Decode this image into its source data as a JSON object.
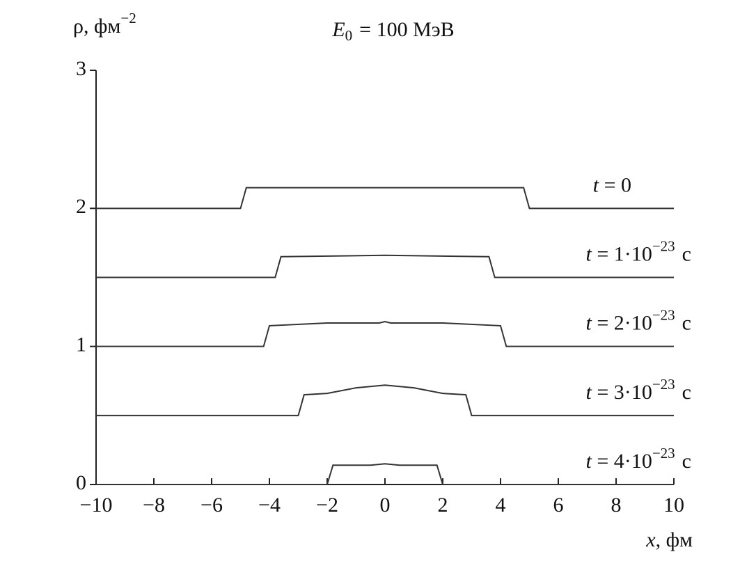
{
  "chart_data": {
    "type": "line",
    "title": "E0 = 100 МэВ",
    "y_label": "ρ, фм−2",
    "x_label": "x, фм",
    "xlim": [
      -10,
      10
    ],
    "ylim": [
      0,
      3
    ],
    "xticks": [
      {
        "value": -10,
        "label": "−10"
      },
      {
        "value": -8,
        "label": "−8"
      },
      {
        "value": -6,
        "label": "−6"
      },
      {
        "value": -4,
        "label": "−4"
      },
      {
        "value": -2,
        "label": "−2"
      },
      0,
      2,
      4,
      6,
      8,
      10
    ],
    "yticks": [
      0,
      1,
      2,
      3
    ],
    "series": [
      {
        "name": "t = 0",
        "color": "#333333",
        "x": [
          -10,
          -5.0,
          -4.8,
          4.8,
          5.0,
          10
        ],
        "values": [
          2.0,
          2.0,
          2.15,
          2.15,
          2.0,
          2.0
        ]
      },
      {
        "name": "t = 1·10−23 с",
        "color": "#333333",
        "x": [
          -10,
          -3.8,
          -3.6,
          0,
          3.6,
          3.8,
          10
        ],
        "values": [
          1.5,
          1.5,
          1.65,
          1.66,
          1.65,
          1.5,
          1.5
        ]
      },
      {
        "name": "t = 2·10−23 с",
        "color": "#333333",
        "x": [
          -10,
          -4.2,
          -4.0,
          -2,
          -0.2,
          0,
          0.2,
          2,
          4.0,
          4.2,
          10
        ],
        "values": [
          1.0,
          1.0,
          1.15,
          1.17,
          1.17,
          1.18,
          1.17,
          1.17,
          1.15,
          1.0,
          1.0
        ]
      },
      {
        "name": "t = 3·10−23 с",
        "color": "#333333",
        "x": [
          -10,
          -3.0,
          -2.8,
          -2,
          -1,
          0,
          1,
          2,
          2.8,
          3.0,
          10
        ],
        "values": [
          0.5,
          0.5,
          0.65,
          0.66,
          0.7,
          0.72,
          0.7,
          0.66,
          0.65,
          0.5,
          0.5
        ]
      },
      {
        "name": "t = 4·10−23 с",
        "color": "#333333",
        "x": [
          -10,
          -2.0,
          -1.8,
          -0.5,
          0,
          0.5,
          1.8,
          2.0,
          10
        ],
        "values": [
          0.0,
          0.0,
          0.14,
          0.14,
          0.15,
          0.14,
          0.14,
          0.0,
          0.0
        ]
      }
    ]
  }
}
